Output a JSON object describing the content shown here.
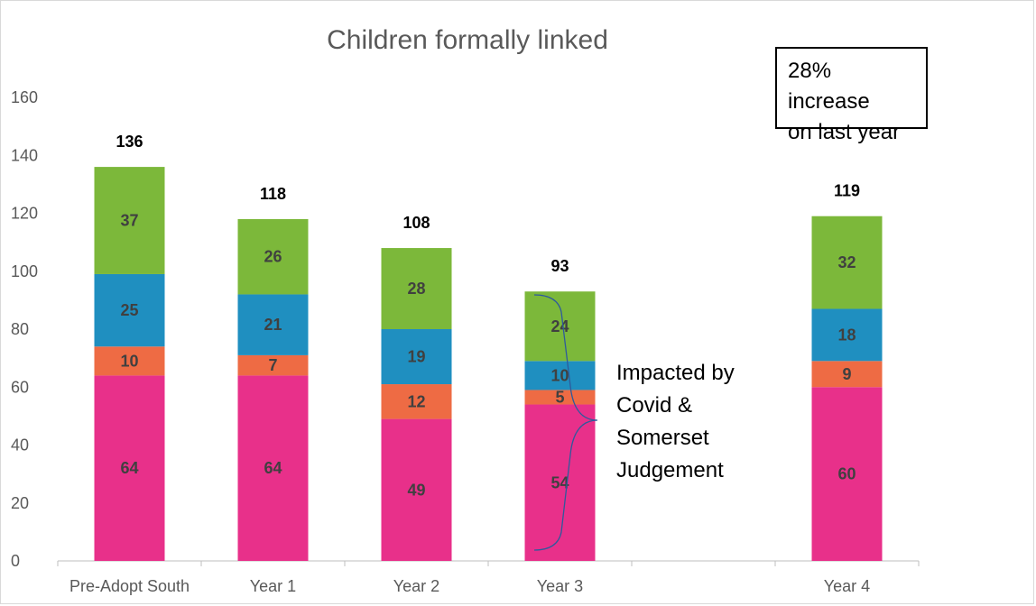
{
  "chart_data": {
    "type": "bar",
    "stacked": true,
    "title": "Children formally linked",
    "categories": [
      "Pre-Adopt South",
      "Year 1",
      "Year 2",
      "Year 3",
      "",
      "Year 4"
    ],
    "series": [
      {
        "values": [
          64,
          64,
          49,
          54,
          null,
          60
        ],
        "color": "#e8308a"
      },
      {
        "values": [
          10,
          7,
          12,
          5,
          null,
          9
        ],
        "color": "#ee6b44"
      },
      {
        "values": [
          25,
          21,
          19,
          10,
          null,
          18
        ],
        "color": "#1f8fc0"
      },
      {
        "values": [
          37,
          26,
          28,
          24,
          null,
          32
        ],
        "color": "#7cb83a"
      }
    ],
    "totals": [
      136,
      118,
      108,
      93,
      null,
      119
    ],
    "ylim": [
      0,
      160
    ],
    "yticks": [
      0,
      20,
      40,
      60,
      80,
      100,
      120,
      140,
      160
    ],
    "grid": false,
    "legend": "none"
  },
  "annotations": {
    "increase_note": [
      "28% increase",
      "on last year"
    ],
    "impact_note": [
      "Impacted by",
      "Covid &",
      "Somerset",
      "Judgement"
    ]
  }
}
